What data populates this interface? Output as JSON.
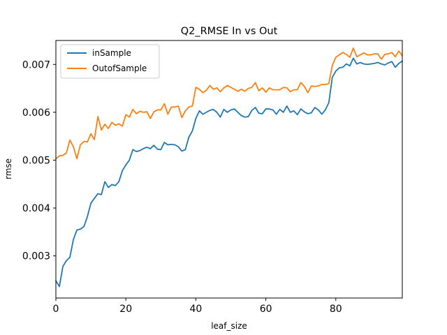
{
  "chart_data": {
    "type": "line",
    "title": "Q2_RMSE In vs Out",
    "xlabel": "leaf_size",
    "ylabel": "rmse",
    "xlim": [
      0,
      99
    ],
    "ylim": [
      0.00212,
      0.0075
    ],
    "xticks": [
      0,
      20,
      40,
      60,
      80
    ],
    "yticks": [
      0.003,
      0.004,
      0.005,
      0.006,
      0.007
    ],
    "xtick_labels": [
      "0",
      "20",
      "40",
      "60",
      "80"
    ],
    "ytick_labels": [
      "0.003",
      "0.004",
      "0.005",
      "0.006",
      "0.007"
    ],
    "legend_position": "top-left",
    "grid": false,
    "x": [
      0,
      1,
      2,
      3,
      4,
      5,
      6,
      7,
      8,
      9,
      10,
      11,
      12,
      13,
      14,
      15,
      16,
      17,
      18,
      19,
      20,
      21,
      22,
      23,
      24,
      25,
      26,
      27,
      28,
      29,
      30,
      31,
      32,
      33,
      34,
      35,
      36,
      37,
      38,
      39,
      40,
      41,
      42,
      43,
      44,
      45,
      46,
      47,
      48,
      49,
      50,
      51,
      52,
      53,
      54,
      55,
      56,
      57,
      58,
      59,
      60,
      61,
      62,
      63,
      64,
      65,
      66,
      67,
      68,
      69,
      70,
      71,
      72,
      73,
      74,
      75,
      76,
      77,
      78,
      79,
      80,
      81,
      82,
      83,
      84,
      85,
      86,
      87,
      88,
      89,
      90,
      91,
      92,
      93,
      94,
      95,
      96,
      97,
      98,
      99
    ],
    "series": [
      {
        "name": "inSample",
        "color": "#1f77b4",
        "values": [
          0.00248,
          0.00236,
          0.00278,
          0.0029,
          0.00297,
          0.00334,
          0.00354,
          0.00356,
          0.00361,
          0.00382,
          0.0041,
          0.0042,
          0.0043,
          0.00428,
          0.00455,
          0.00443,
          0.00449,
          0.00447,
          0.00455,
          0.00478,
          0.0049,
          0.005,
          0.00522,
          0.00518,
          0.0052,
          0.00524,
          0.00527,
          0.00524,
          0.00531,
          0.00523,
          0.00522,
          0.00537,
          0.00532,
          0.00533,
          0.00532,
          0.00528,
          0.00519,
          0.00522,
          0.00548,
          0.00561,
          0.00587,
          0.00603,
          0.00596,
          0.006,
          0.00604,
          0.00606,
          0.006,
          0.0059,
          0.00606,
          0.006,
          0.00605,
          0.00607,
          0.006,
          0.00593,
          0.0059,
          0.00591,
          0.00604,
          0.0061,
          0.00598,
          0.00597,
          0.00607,
          0.00607,
          0.00605,
          0.00596,
          0.00606,
          0.006,
          0.00613,
          0.006,
          0.00603,
          0.00595,
          0.00607,
          0.00601,
          0.00597,
          0.00599,
          0.0061,
          0.00605,
          0.00596,
          0.00605,
          0.0062,
          0.00673,
          0.00686,
          0.00693,
          0.00694,
          0.00701,
          0.00697,
          0.00713,
          0.00701,
          0.00704,
          0.00701,
          0.007,
          0.00701,
          0.00702,
          0.00704,
          0.00701,
          0.00699,
          0.00703,
          0.00706,
          0.00694,
          0.00702,
          0.00707
        ]
      },
      {
        "name": "OutofSample",
        "color": "#ff7f0e",
        "values": [
          0.00503,
          0.00509,
          0.0051,
          0.00515,
          0.00542,
          0.00528,
          0.00503,
          0.00532,
          0.00539,
          0.00538,
          0.00555,
          0.00543,
          0.00591,
          0.00563,
          0.00575,
          0.00566,
          0.00579,
          0.00573,
          0.00576,
          0.00571,
          0.00595,
          0.0059,
          0.00606,
          0.00597,
          0.00602,
          0.006,
          0.00601,
          0.00587,
          0.00601,
          0.00605,
          0.00605,
          0.00618,
          0.00596,
          0.00611,
          0.00611,
          0.00613,
          0.00589,
          0.00603,
          0.00611,
          0.00613,
          0.00652,
          0.00648,
          0.00641,
          0.00646,
          0.00656,
          0.00648,
          0.00651,
          0.00643,
          0.00651,
          0.00656,
          0.00652,
          0.00648,
          0.00644,
          0.00648,
          0.00644,
          0.0065,
          0.00652,
          0.00662,
          0.00645,
          0.00651,
          0.00642,
          0.00651,
          0.00647,
          0.00647,
          0.00647,
          0.00652,
          0.00651,
          0.00643,
          0.00647,
          0.00647,
          0.00662,
          0.00654,
          0.00641,
          0.00655,
          0.00654,
          0.00655,
          0.00658,
          0.00658,
          0.0066,
          0.00698,
          0.00715,
          0.0072,
          0.00725,
          0.00721,
          0.00715,
          0.00734,
          0.00716,
          0.0072,
          0.00724,
          0.0072,
          0.0072,
          0.00722,
          0.00722,
          0.00711,
          0.00721,
          0.00722,
          0.00725,
          0.00716,
          0.00728,
          0.00718
        ]
      }
    ]
  }
}
